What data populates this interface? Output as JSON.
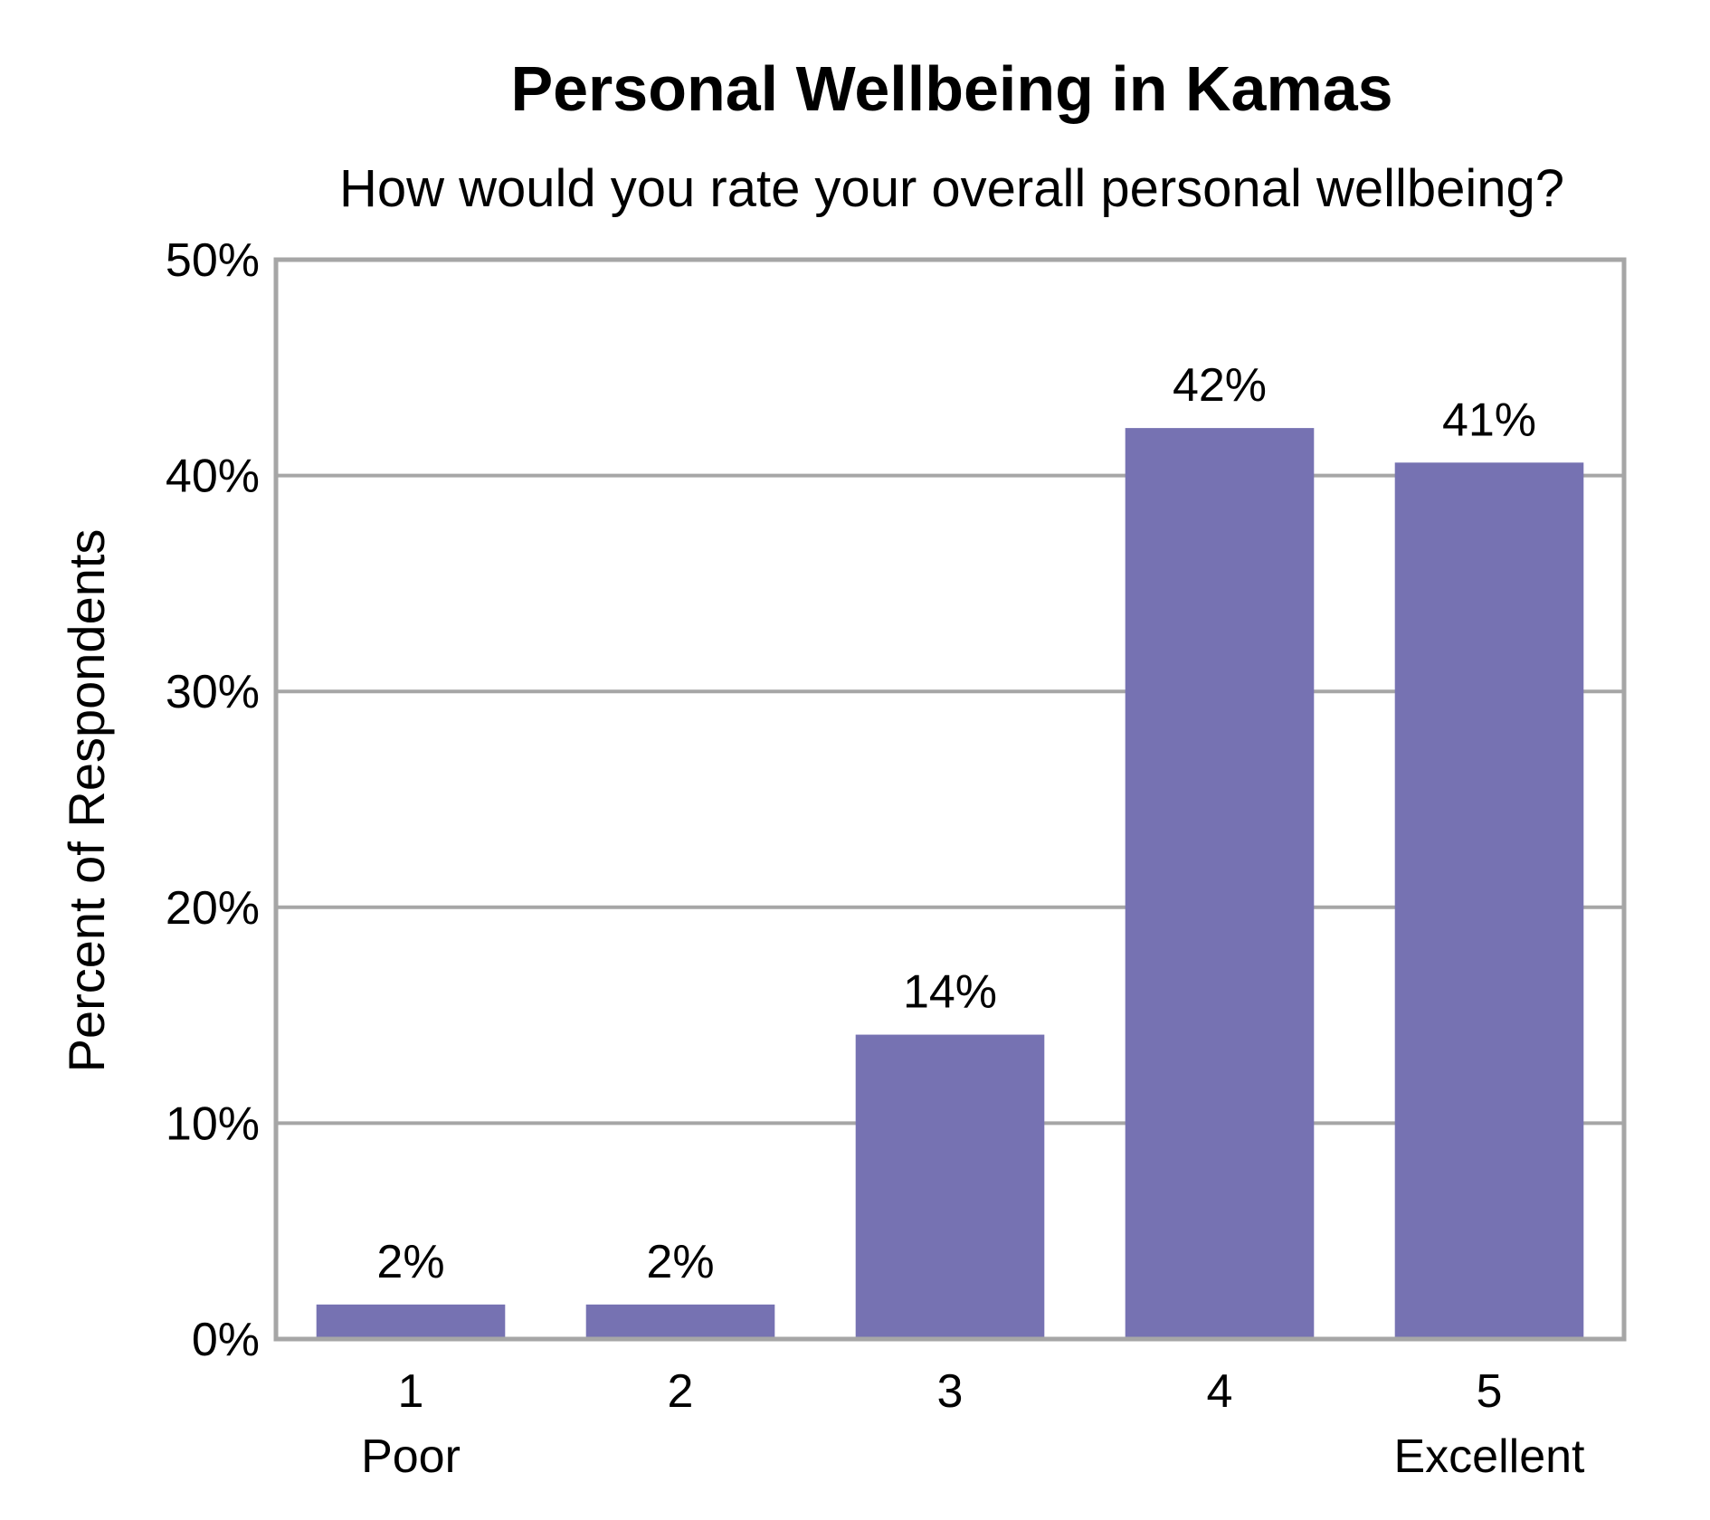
{
  "chart_data": {
    "type": "bar",
    "title": "Personal Wellbeing in Kamas",
    "subtitle": "How would you rate your overall personal wellbeing?",
    "xlabel": "",
    "ylabel": "Percent of Respondents",
    "categories": [
      "1",
      "2",
      "3",
      "4",
      "5"
    ],
    "category_sublabels": [
      "Poor",
      "",
      "",
      "",
      "Excellent"
    ],
    "values": [
      1.6,
      1.6,
      14.1,
      42.2,
      40.6
    ],
    "data_labels": [
      "2%",
      "2%",
      "14%",
      "42%",
      "41%"
    ],
    "ylim": [
      0,
      50
    ],
    "yticks": [
      0,
      10,
      20,
      30,
      40,
      50
    ],
    "ytick_labels": [
      "0%",
      "10%",
      "20%",
      "30%",
      "40%",
      "50%"
    ],
    "grid": true,
    "legend": "none",
    "colors": {
      "bar": "#7672b2",
      "grid": "#a6a6a6",
      "frame": "#a6a6a6"
    }
  }
}
